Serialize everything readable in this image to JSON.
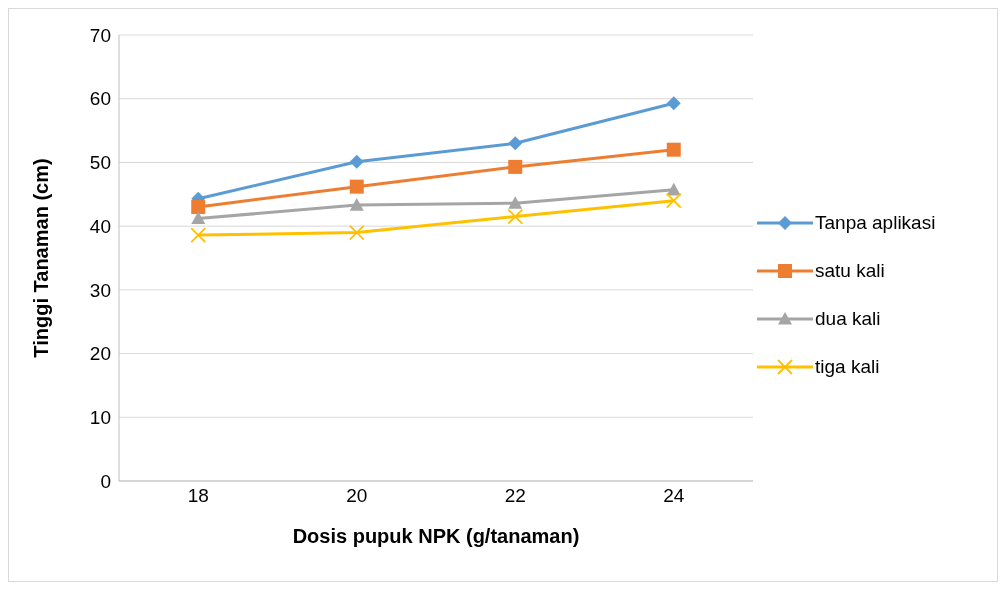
{
  "chart_data": {
    "type": "line",
    "xlabel": "Dosis pupuk NPK (g/tanaman)",
    "ylabel": "Tinggi Tanaman (cm)",
    "categories": [
      "18",
      "20",
      "22",
      "24"
    ],
    "ylim": [
      0,
      70
    ],
    "yticks": [
      0,
      10,
      20,
      30,
      40,
      50,
      60,
      70
    ],
    "grid": "y",
    "legend": "right",
    "line_style": "solid",
    "series": [
      {
        "name": "Tanpa aplikasi",
        "color": "#5b9bd5",
        "marker": "diamond",
        "values": [
          44.3,
          50.1,
          53.0,
          59.3
        ]
      },
      {
        "name": "satu kali",
        "color": "#ed7d31",
        "marker": "square",
        "values": [
          43.0,
          46.2,
          49.3,
          52.0
        ]
      },
      {
        "name": "dua kali",
        "color": "#a5a5a5",
        "marker": "triangle",
        "values": [
          41.2,
          43.3,
          43.6,
          45.7
        ]
      },
      {
        "name": "tiga kali",
        "color": "#ffc000",
        "marker": "cross",
        "values": [
          38.6,
          39.0,
          41.5,
          44.0
        ]
      }
    ]
  }
}
